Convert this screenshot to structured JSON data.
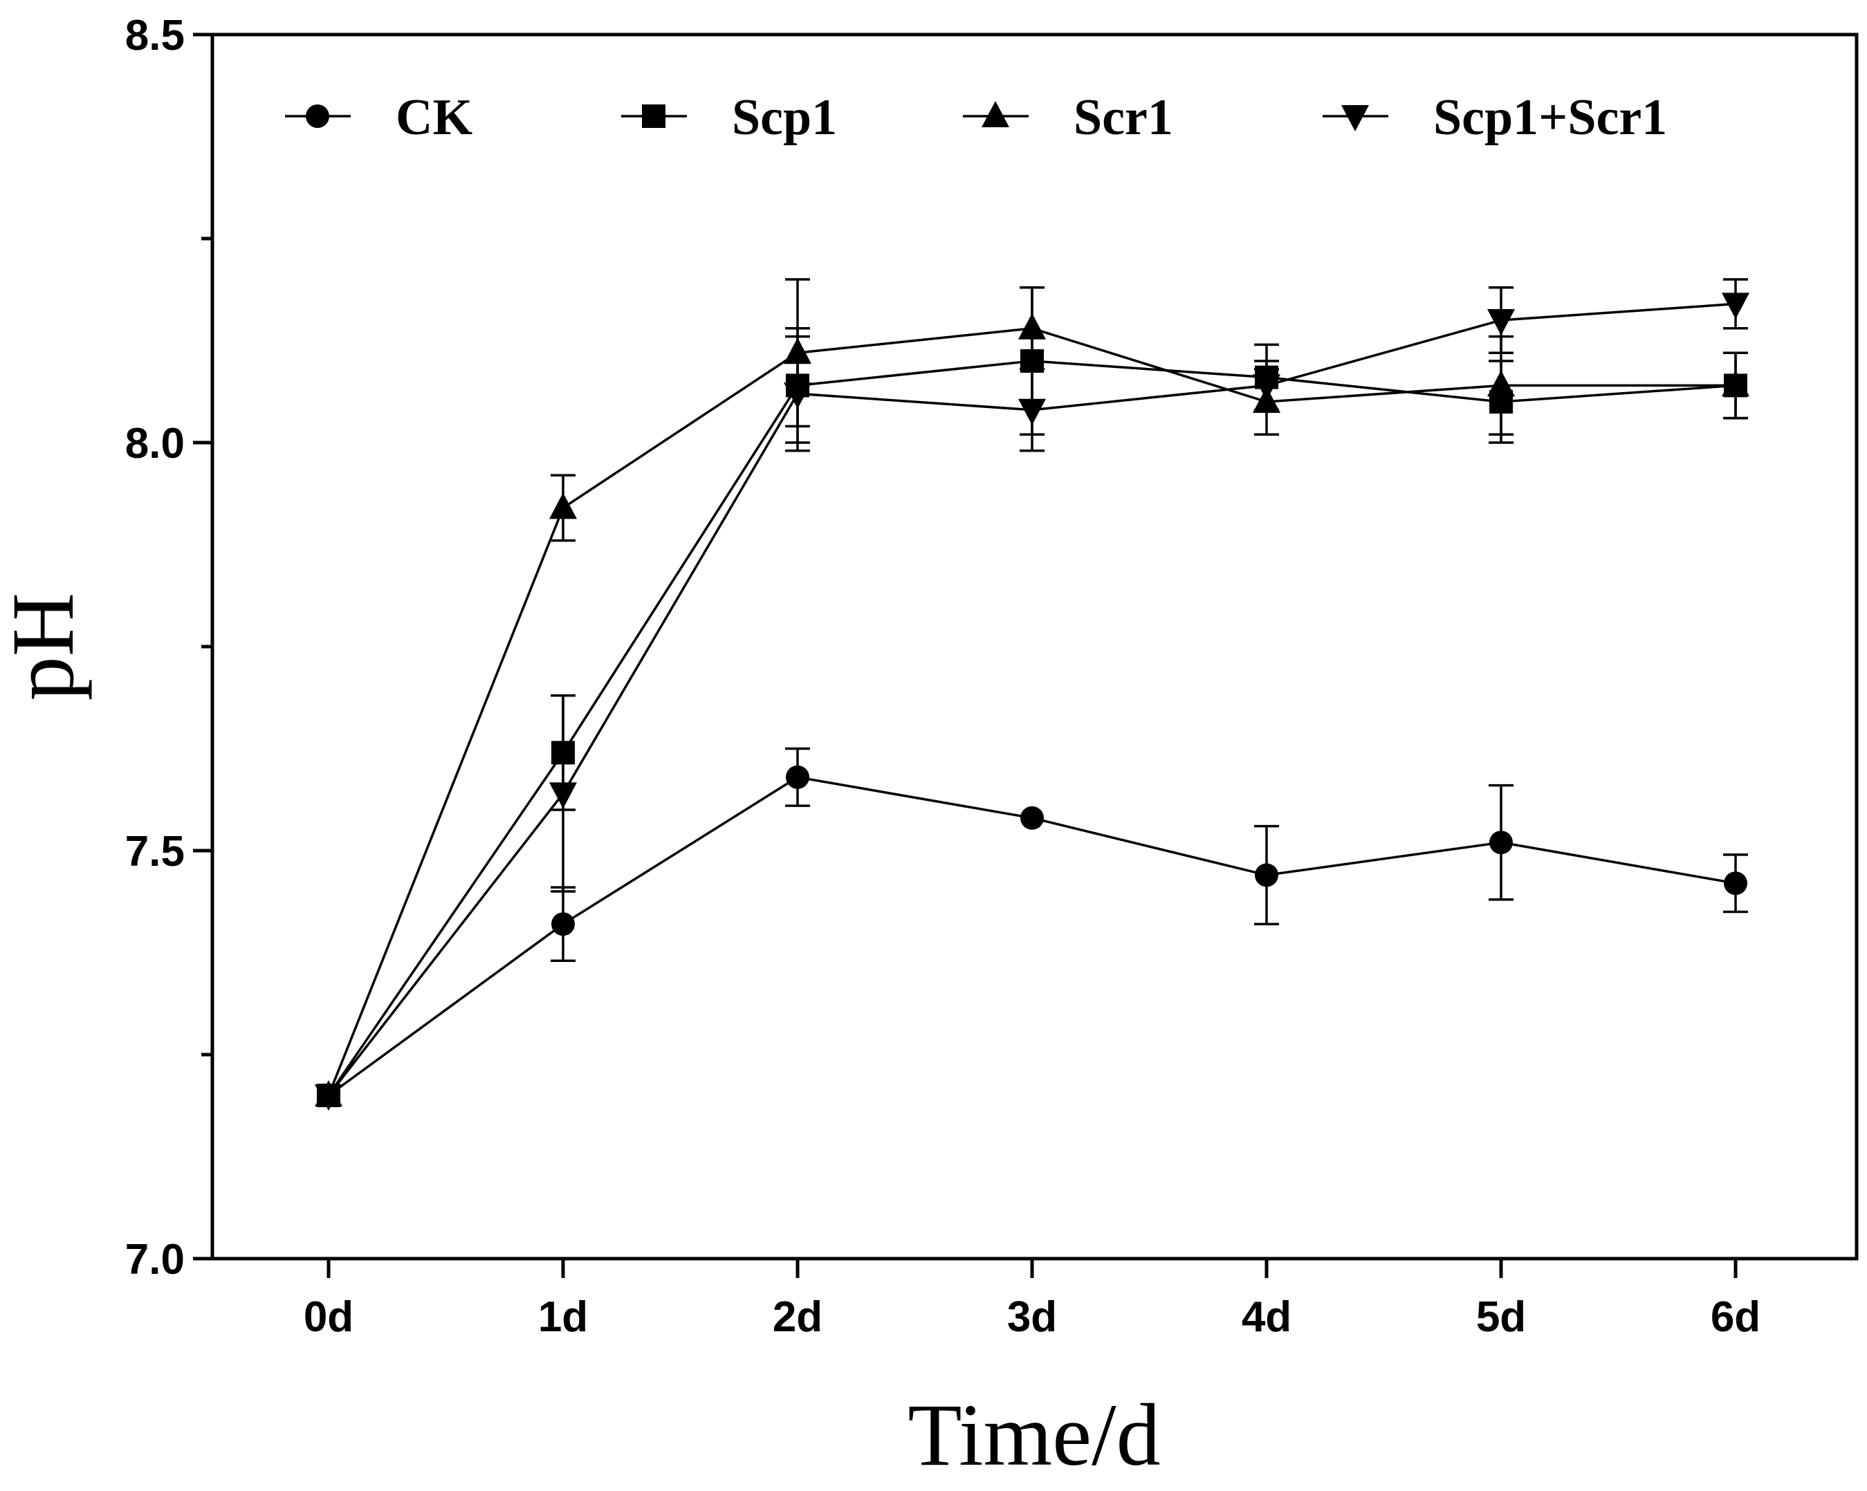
{
  "chart_data": {
    "type": "line",
    "title": "",
    "xlabel": "Time/d",
    "ylabel": "pH",
    "categories": [
      "0d",
      "1d",
      "2d",
      "3d",
      "4d",
      "5d",
      "6d"
    ],
    "ylim": [
      7.0,
      8.5
    ],
    "yticks": [
      7.0,
      7.5,
      8.0,
      8.5
    ],
    "ytick_labels": [
      "7.0",
      "7.5",
      "8.0",
      "8.5"
    ],
    "grid": false,
    "legend_position": "top",
    "series": [
      {
        "name": "CK",
        "marker": "circle",
        "values": [
          7.2,
          7.41,
          7.59,
          7.54,
          7.47,
          7.51,
          7.46
        ],
        "errors": [
          0,
          0.045,
          0.035,
          0,
          0.06,
          0.07,
          0.035
        ]
      },
      {
        "name": "Scp1",
        "marker": "square",
        "values": [
          7.2,
          7.62,
          8.07,
          8.1,
          8.08,
          8.05,
          8.07
        ],
        "errors": [
          0,
          0.07,
          0.07,
          0.09,
          0.04,
          0.05,
          0.04
        ]
      },
      {
        "name": "Scr1",
        "marker": "triangle-up",
        "values": [
          7.2,
          7.92,
          8.11,
          8.14,
          8.05,
          8.07,
          8.07
        ],
        "errors": [
          0,
          0.04,
          0.09,
          0.05,
          0.04,
          0.06,
          0.04
        ]
      },
      {
        "name": "Scp1+Scr1",
        "marker": "triangle-down",
        "values": [
          7.2,
          7.57,
          8.06,
          8.04,
          8.07,
          8.15,
          8.17
        ],
        "errors": [
          0,
          0.12,
          0.07,
          0.05,
          0.03,
          0.04,
          0.03
        ]
      }
    ]
  }
}
